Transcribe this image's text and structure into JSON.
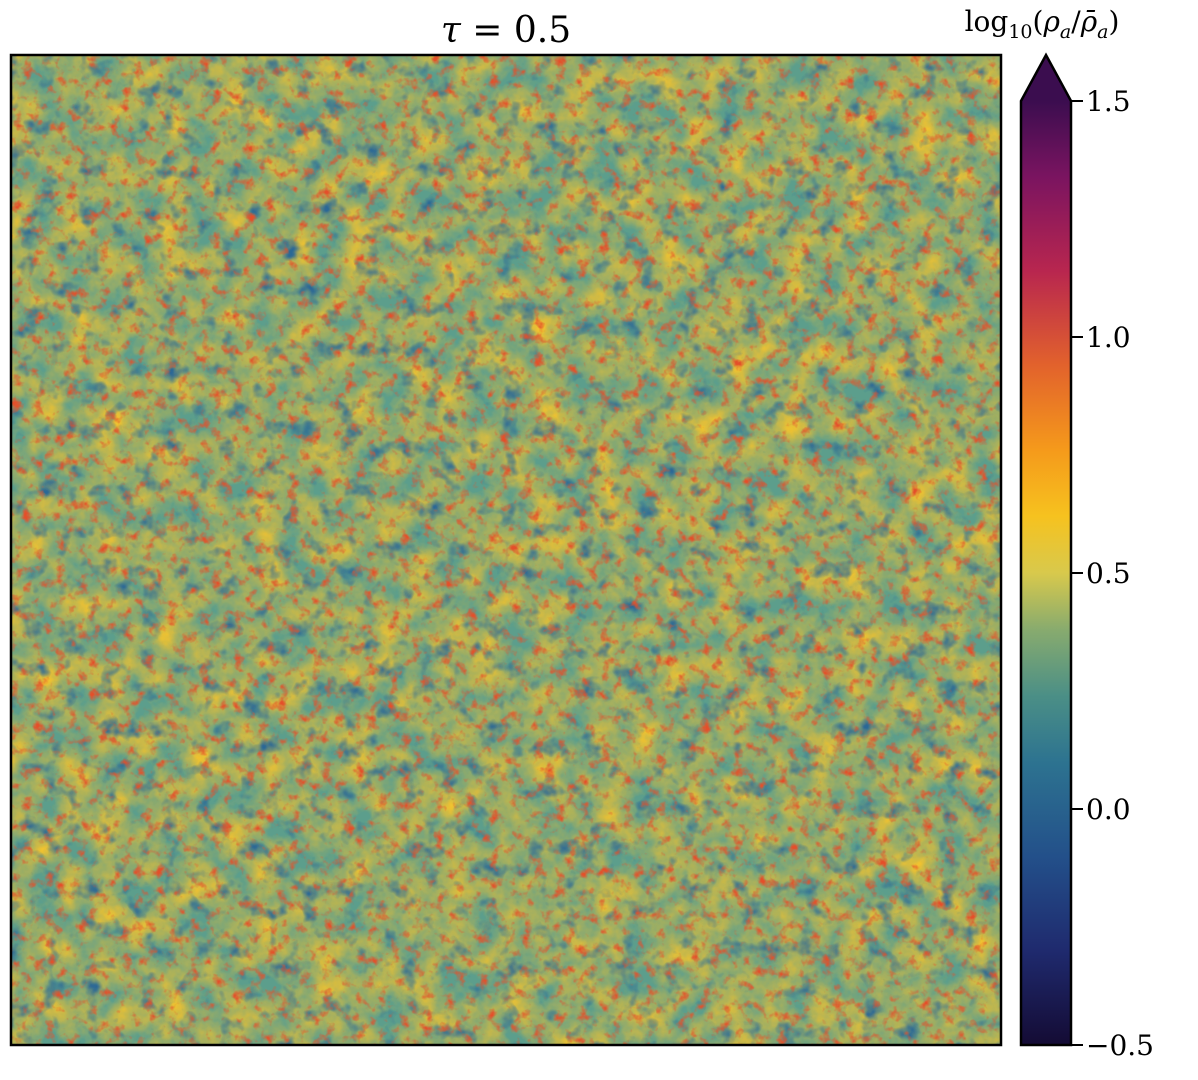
{
  "chart_data": {
    "type": "heatmap",
    "title": "τ = 0.5",
    "title_symbol": "τ",
    "title_value": "0.5",
    "colorbar": {
      "label": "log₁₀(ρₐ/ρ̄ₐ)",
      "label_parts": {
        "prefix": "log",
        "subscript": "10",
        "numerator": "ρ",
        "numerator_sub": "a",
        "denominator": "ρ̄",
        "denominator_sub": "a"
      },
      "range": [
        -0.5,
        1.5
      ],
      "ticks": [
        1.5,
        1.0,
        0.5,
        0.0,
        -0.5
      ],
      "tick_labels": [
        "1.5",
        "1.0",
        "0.5",
        "0.0",
        "−0.5"
      ],
      "extend": "max",
      "colormap": "inferno-like (dark purple → magenta → orange → yellow → teal → navy)"
    },
    "field_description_colors": {
      "voids": "#2f6e9a",
      "background": "#58a08c",
      "filaments": "#f2c32e",
      "dense_knots": "#e0452a"
    }
  }
}
